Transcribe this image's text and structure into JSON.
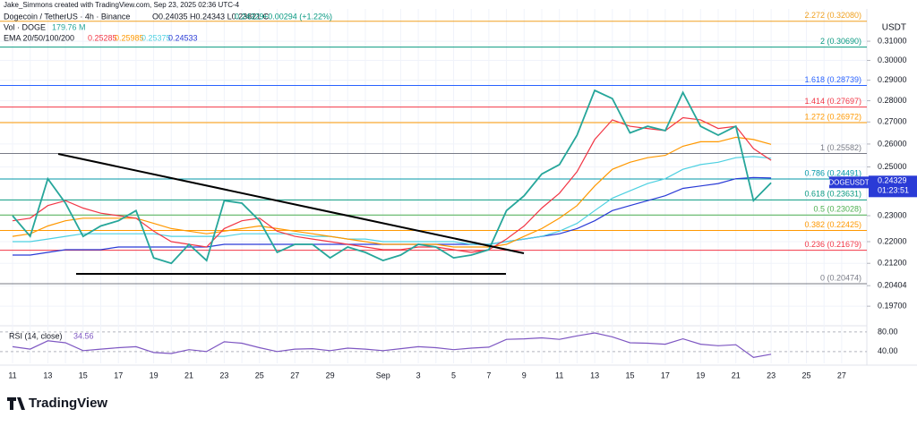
{
  "header": {
    "credit": "Jake_Simmons created with TradingView.com, Sep 23, 2025 02:36 UTC-4",
    "symbol": "Dogecoin / TetherUS · 4h · Binance",
    "ohlc": "O0.24035  H0.24343  L0.23821  C",
    "change": "+0.00294 (+1.22%)",
    "volume_label": "Vol · DOGE",
    "volume": "179.76 M",
    "ema_label": "EMA 20/50/100/200",
    "logo": "TradingView"
  },
  "chart_data": [
    {
      "type": "line",
      "log_scale": true,
      "currency": "USDT",
      "countdown": "01:23:51",
      "categories": [
        "11",
        null,
        "13",
        null,
        "15",
        null,
        "17",
        null,
        "19",
        null,
        "21",
        null,
        "23",
        null,
        "25",
        null,
        "27",
        null,
        "29",
        null,
        null,
        "Sep",
        null,
        "3",
        null,
        "5",
        null,
        "7",
        null,
        "9",
        null,
        "11",
        null,
        "13",
        null,
        "15",
        null,
        "17",
        null,
        "19",
        null,
        "21",
        null,
        "23",
        null,
        "25",
        null,
        "27"
      ],
      "series": [
        {
          "name": "DOGEUSDT",
          "color": "#26a69a",
          "values": [
            0.23,
            0.222,
            0.245,
            0.235,
            0.222,
            0.226,
            0.228,
            0.232,
            0.214,
            0.212,
            0.219,
            0.213,
            0.236,
            0.235,
            0.228,
            0.216,
            0.219,
            0.219,
            0.214,
            0.218,
            0.216,
            0.213,
            0.215,
            0.219,
            0.218,
            0.214,
            0.215,
            0.217,
            0.232,
            0.238,
            0.247,
            0.251,
            0.264,
            0.285,
            0.281,
            0.265,
            0.268,
            0.266,
            0.284,
            0.268,
            0.264,
            0.268,
            0.236,
            0.24329,
            null,
            null,
            null,
            null
          ]
        },
        {
          "color": "#f23645",
          "values": [
            0.228,
            0.229,
            0.234,
            0.236,
            0.233,
            0.231,
            0.23,
            0.229,
            0.224,
            0.22,
            0.219,
            0.218,
            0.225,
            0.228,
            0.229,
            0.224,
            0.222,
            0.221,
            0.22,
            0.219,
            0.218,
            0.217,
            0.217,
            0.218,
            0.218,
            0.217,
            0.216,
            0.217,
            0.221,
            0.226,
            0.233,
            0.239,
            0.248,
            0.262,
            0.271,
            0.268,
            0.267,
            0.266,
            0.272,
            0.271,
            0.267,
            0.268,
            0.258,
            0.25285,
            null,
            null,
            null,
            null
          ]
        },
        {
          "color": "#ff9800",
          "values": [
            0.222,
            0.223,
            0.226,
            0.228,
            0.229,
            0.229,
            0.229,
            0.229,
            0.227,
            0.225,
            0.224,
            0.223,
            0.224,
            0.225,
            0.226,
            0.225,
            0.224,
            0.223,
            0.222,
            0.221,
            0.22,
            0.219,
            0.219,
            0.219,
            0.219,
            0.218,
            0.218,
            0.218,
            0.219,
            0.222,
            0.225,
            0.229,
            0.234,
            0.242,
            0.249,
            0.252,
            0.254,
            0.255,
            0.259,
            0.261,
            0.261,
            0.263,
            0.262,
            0.25985,
            null,
            null,
            null,
            null
          ]
        },
        {
          "color": "#4dd0e1",
          "values": [
            0.22,
            0.22,
            0.221,
            0.222,
            0.223,
            0.223,
            0.223,
            0.223,
            0.223,
            0.222,
            0.222,
            0.222,
            0.222,
            0.223,
            0.223,
            0.223,
            0.223,
            0.222,
            0.222,
            0.221,
            0.221,
            0.22,
            0.22,
            0.22,
            0.22,
            0.22,
            0.219,
            0.219,
            0.22,
            0.221,
            0.222,
            0.224,
            0.227,
            0.232,
            0.237,
            0.24,
            0.243,
            0.245,
            0.249,
            0.251,
            0.252,
            0.254,
            0.2545,
            0.25375,
            null,
            null,
            null,
            null
          ]
        },
        {
          "color": "#2a3bd6",
          "values": [
            0.215,
            0.215,
            0.216,
            0.217,
            0.217,
            0.217,
            0.218,
            0.218,
            0.218,
            0.218,
            0.218,
            0.218,
            0.219,
            0.219,
            0.219,
            0.219,
            0.219,
            0.219,
            0.219,
            0.219,
            0.219,
            0.219,
            0.219,
            0.219,
            0.219,
            0.219,
            0.219,
            0.219,
            0.22,
            0.221,
            0.222,
            0.223,
            0.225,
            0.228,
            0.232,
            0.234,
            0.236,
            0.238,
            0.241,
            0.242,
            0.243,
            0.245,
            0.2455,
            0.24533,
            null,
            null,
            null,
            null
          ]
        }
      ],
      "ylim": [
        0.1911,
        0.3276
      ],
      "yticks": [
        {
          "value": 0.31,
          "label": "0.31000"
        },
        {
          "value": 0.3,
          "label": "0.30000"
        },
        {
          "value": 0.29,
          "label": "0.29000"
        },
        {
          "value": 0.28,
          "label": "0.28000"
        },
        {
          "value": 0.27,
          "label": "0.27000"
        },
        {
          "value": 0.26,
          "label": "0.26000"
        },
        {
          "value": 0.25,
          "label": "0.25000"
        },
        {
          "value": 0.23,
          "label": "0.23000"
        },
        {
          "value": 0.22,
          "label": "0.22000"
        },
        {
          "value": 0.212,
          "label": "0.21200"
        },
        {
          "value": 0.20404,
          "label": "0.20404"
        },
        {
          "value": 0.197,
          "label": "0.19700"
        }
      ],
      "fib_levels": [
        {
          "label": "2.272 (0.32080)",
          "value": 0.3208,
          "color": "#f0a020"
        },
        {
          "label": "2 (0.30690)",
          "value": 0.3069,
          "color": "#089981"
        },
        {
          "label": "1.618 (0.28739)",
          "value": 0.28739,
          "color": "#2962ff"
        },
        {
          "label": "1.414 (0.27697)",
          "value": 0.27697,
          "color": "#f23645"
        },
        {
          "label": "1.272 (0.26972)",
          "value": 0.26972,
          "color": "#ff9800"
        },
        {
          "label": "1 (0.25582)",
          "value": 0.25582,
          "color": "#787b86"
        },
        {
          "label": "0.786 (0.24491)",
          "value": 0.24491,
          "color": "#0097a7"
        },
        {
          "label": "0.618 (0.23631)",
          "value": 0.23631,
          "color": "#089981"
        },
        {
          "label": "0.5 (0.23028)",
          "value": 0.23028,
          "color": "#4caf50"
        },
        {
          "label": "0.382 (0.22425)",
          "value": 0.22425,
          "color": "#ff9800"
        },
        {
          "label": "0.236 (0.21679)",
          "value": 0.21679,
          "color": "#f23645"
        },
        {
          "label": "0 (0.20474)",
          "value": 0.20474,
          "color": "#787b86"
        }
      ]
    },
    {
      "type": "line",
      "title": "RSI (14, close)",
      "color": "#7e57c2",
      "values": [
        50,
        45,
        62,
        58,
        42,
        45,
        48,
        50,
        38,
        36,
        44,
        40,
        60,
        57,
        48,
        40,
        45,
        46,
        42,
        47,
        45,
        42,
        46,
        50,
        48,
        44,
        47,
        49,
        65,
        66,
        68,
        65,
        72,
        78,
        70,
        58,
        57,
        55,
        66,
        55,
        52,
        54,
        28,
        34.56,
        null,
        null,
        null,
        null
      ],
      "ylim": [
        16,
        89
      ],
      "yticks": [
        {
          "value": 80,
          "label": "80.00"
        },
        {
          "value": 40,
          "label": "40.00"
        }
      ]
    }
  ]
}
